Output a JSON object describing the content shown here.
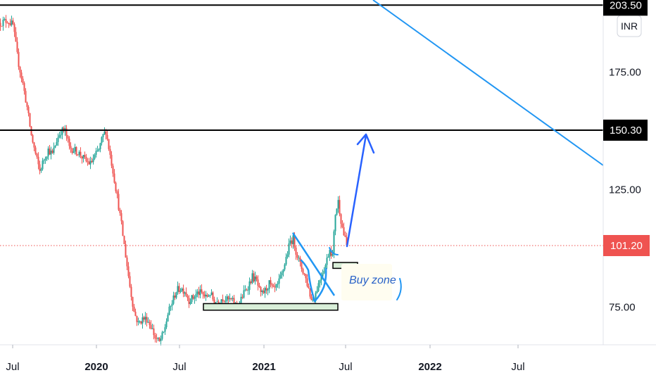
{
  "chart_data": {
    "type": "candlestick",
    "currency": "INR",
    "y_axis": {
      "ticks": [
        75,
        125,
        175
      ],
      "tick_labels": [
        "75.00",
        "125.00",
        "175.00"
      ],
      "range": [
        56,
        208
      ]
    },
    "x_axis": {
      "ticks": [
        {
          "label": "Jul",
          "bold": false
        },
        {
          "label": "2020",
          "bold": true
        },
        {
          "label": "Jul",
          "bold": false
        },
        {
          "label": "2021",
          "bold": true
        },
        {
          "label": "Jul",
          "bold": false
        },
        {
          "label": "2022",
          "bold": true
        },
        {
          "label": "Jul",
          "bold": false
        }
      ]
    },
    "horizontal_lines": [
      {
        "value": 203.5,
        "label": "203.50",
        "color": "#000000"
      },
      {
        "value": 150.3,
        "label": "150.30",
        "color": "#000000"
      }
    ],
    "last_price": {
      "value": 101.2,
      "label": "101.20",
      "color": "#ef5350"
    },
    "up_color": "#26a69a",
    "down_color": "#ef5350",
    "annotations": [
      {
        "type": "text",
        "text": "Buy zone"
      },
      {
        "type": "zone",
        "name": "support-zone",
        "range": [
          73.7,
          76.5
        ]
      },
      {
        "type": "zone",
        "name": "buy-zone",
        "range": [
          91.5,
          94
        ]
      },
      {
        "type": "trendline",
        "name": "long-term-downtrend",
        "color": "#2196f3"
      },
      {
        "type": "trendline",
        "name": "falling-wedge-upper",
        "color": "#2196f3"
      },
      {
        "type": "arrow",
        "name": "target-arrow",
        "color": "#2962ff"
      }
    ],
    "grid": false
  }
}
